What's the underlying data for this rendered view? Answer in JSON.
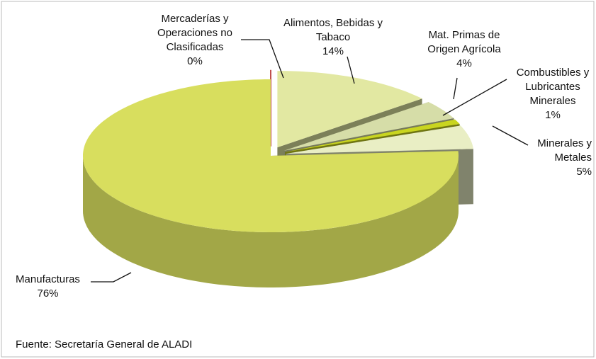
{
  "chart_data": {
    "type": "pie",
    "categories": [
      "Mercaderías y Operaciones no Clasificadas",
      "Alimentos, Bebidas y Tabaco",
      "Mat. Primas de Origen Agrícola",
      "Combustibles y Lubricantes Minerales",
      "Minerales y Metales",
      "Manufacturas"
    ],
    "values": [
      0,
      14,
      4,
      1,
      5,
      76
    ],
    "value_labels": [
      "0%",
      "14%",
      "4%",
      "1%",
      "5%",
      "76%"
    ],
    "colors": [
      "#c0504d",
      "#e2e8a2",
      "#d6dda8",
      "#c9d520",
      "#e9eec4",
      "#d8de5e"
    ],
    "source": "Fuente: Secretaría General de ALADI"
  }
}
